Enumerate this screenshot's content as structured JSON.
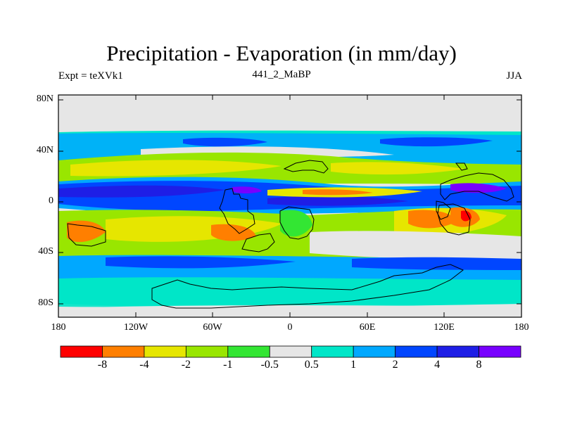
{
  "header": {
    "title": "Precipitation - Evaporation (in mm/day)",
    "experiment": "Expt = teXVk1",
    "subtitle": "441_2_MaBP",
    "season": "JJA"
  },
  "axes": {
    "y_ticks": [
      "80N",
      "40N",
      "0",
      "40S",
      "80S"
    ],
    "x_ticks": [
      "180",
      "120W",
      "60W",
      "0",
      "60E",
      "120E",
      "180"
    ]
  },
  "colorbar": {
    "labels": [
      "-8",
      "-4",
      "-2",
      "-1",
      "-0.5",
      "0.5",
      "1",
      "2",
      "4",
      "8"
    ],
    "colors": [
      "#ff0000",
      "#ff7f00",
      "#e6e600",
      "#99e600",
      "#33e633",
      "#e6e6e6",
      "#00e6c8",
      "#00a8ff",
      "#0046ff",
      "#1e1ee6",
      "#7800ff"
    ]
  },
  "palette": {
    "background": "#e6e6e6",
    "coast": "#000000"
  }
}
